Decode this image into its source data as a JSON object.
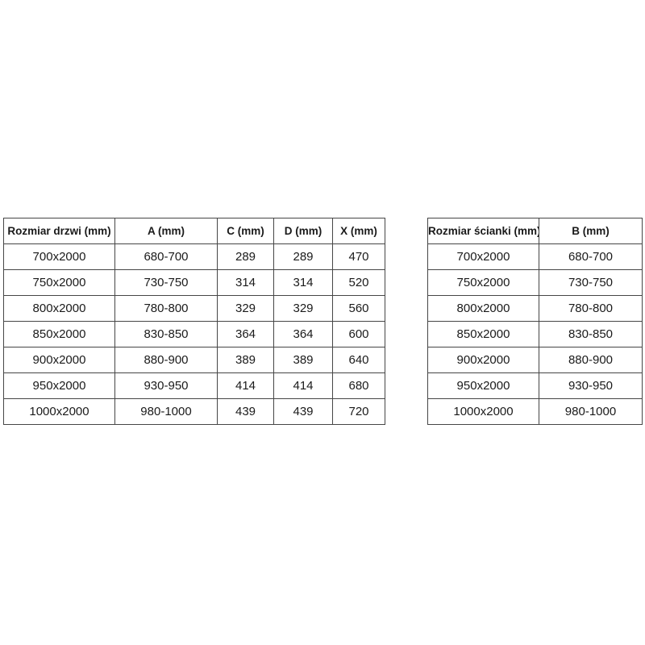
{
  "colors": {
    "background": "#ffffff",
    "border": "#464646",
    "text": "#1a1a1a"
  },
  "chart_data": [
    {
      "type": "table",
      "name": "door-dimensions",
      "headers": [
        "Rozmiar drzwi (mm)",
        "A (mm)",
        "C (mm)",
        "D (mm)",
        "X (mm)"
      ],
      "rows": [
        [
          "700x2000",
          "680-700",
          "289",
          "289",
          "470"
        ],
        [
          "750x2000",
          "730-750",
          "314",
          "314",
          "520"
        ],
        [
          "800x2000",
          "780-800",
          "329",
          "329",
          "560"
        ],
        [
          "850x2000",
          "830-850",
          "364",
          "364",
          "600"
        ],
        [
          "900x2000",
          "880-900",
          "389",
          "389",
          "640"
        ],
        [
          "950x2000",
          "930-950",
          "414",
          "414",
          "680"
        ],
        [
          "1000x2000",
          "980-1000",
          "439",
          "439",
          "720"
        ]
      ]
    },
    {
      "type": "table",
      "name": "wall-dimensions",
      "headers": [
        "Rozmiar ścianki (mm)",
        "B (mm)"
      ],
      "rows": [
        [
          "700x2000",
          "680-700"
        ],
        [
          "750x2000",
          "730-750"
        ],
        [
          "800x2000",
          "780-800"
        ],
        [
          "850x2000",
          "830-850"
        ],
        [
          "900x2000",
          "880-900"
        ],
        [
          "950x2000",
          "930-950"
        ],
        [
          "1000x2000",
          "980-1000"
        ]
      ]
    }
  ]
}
